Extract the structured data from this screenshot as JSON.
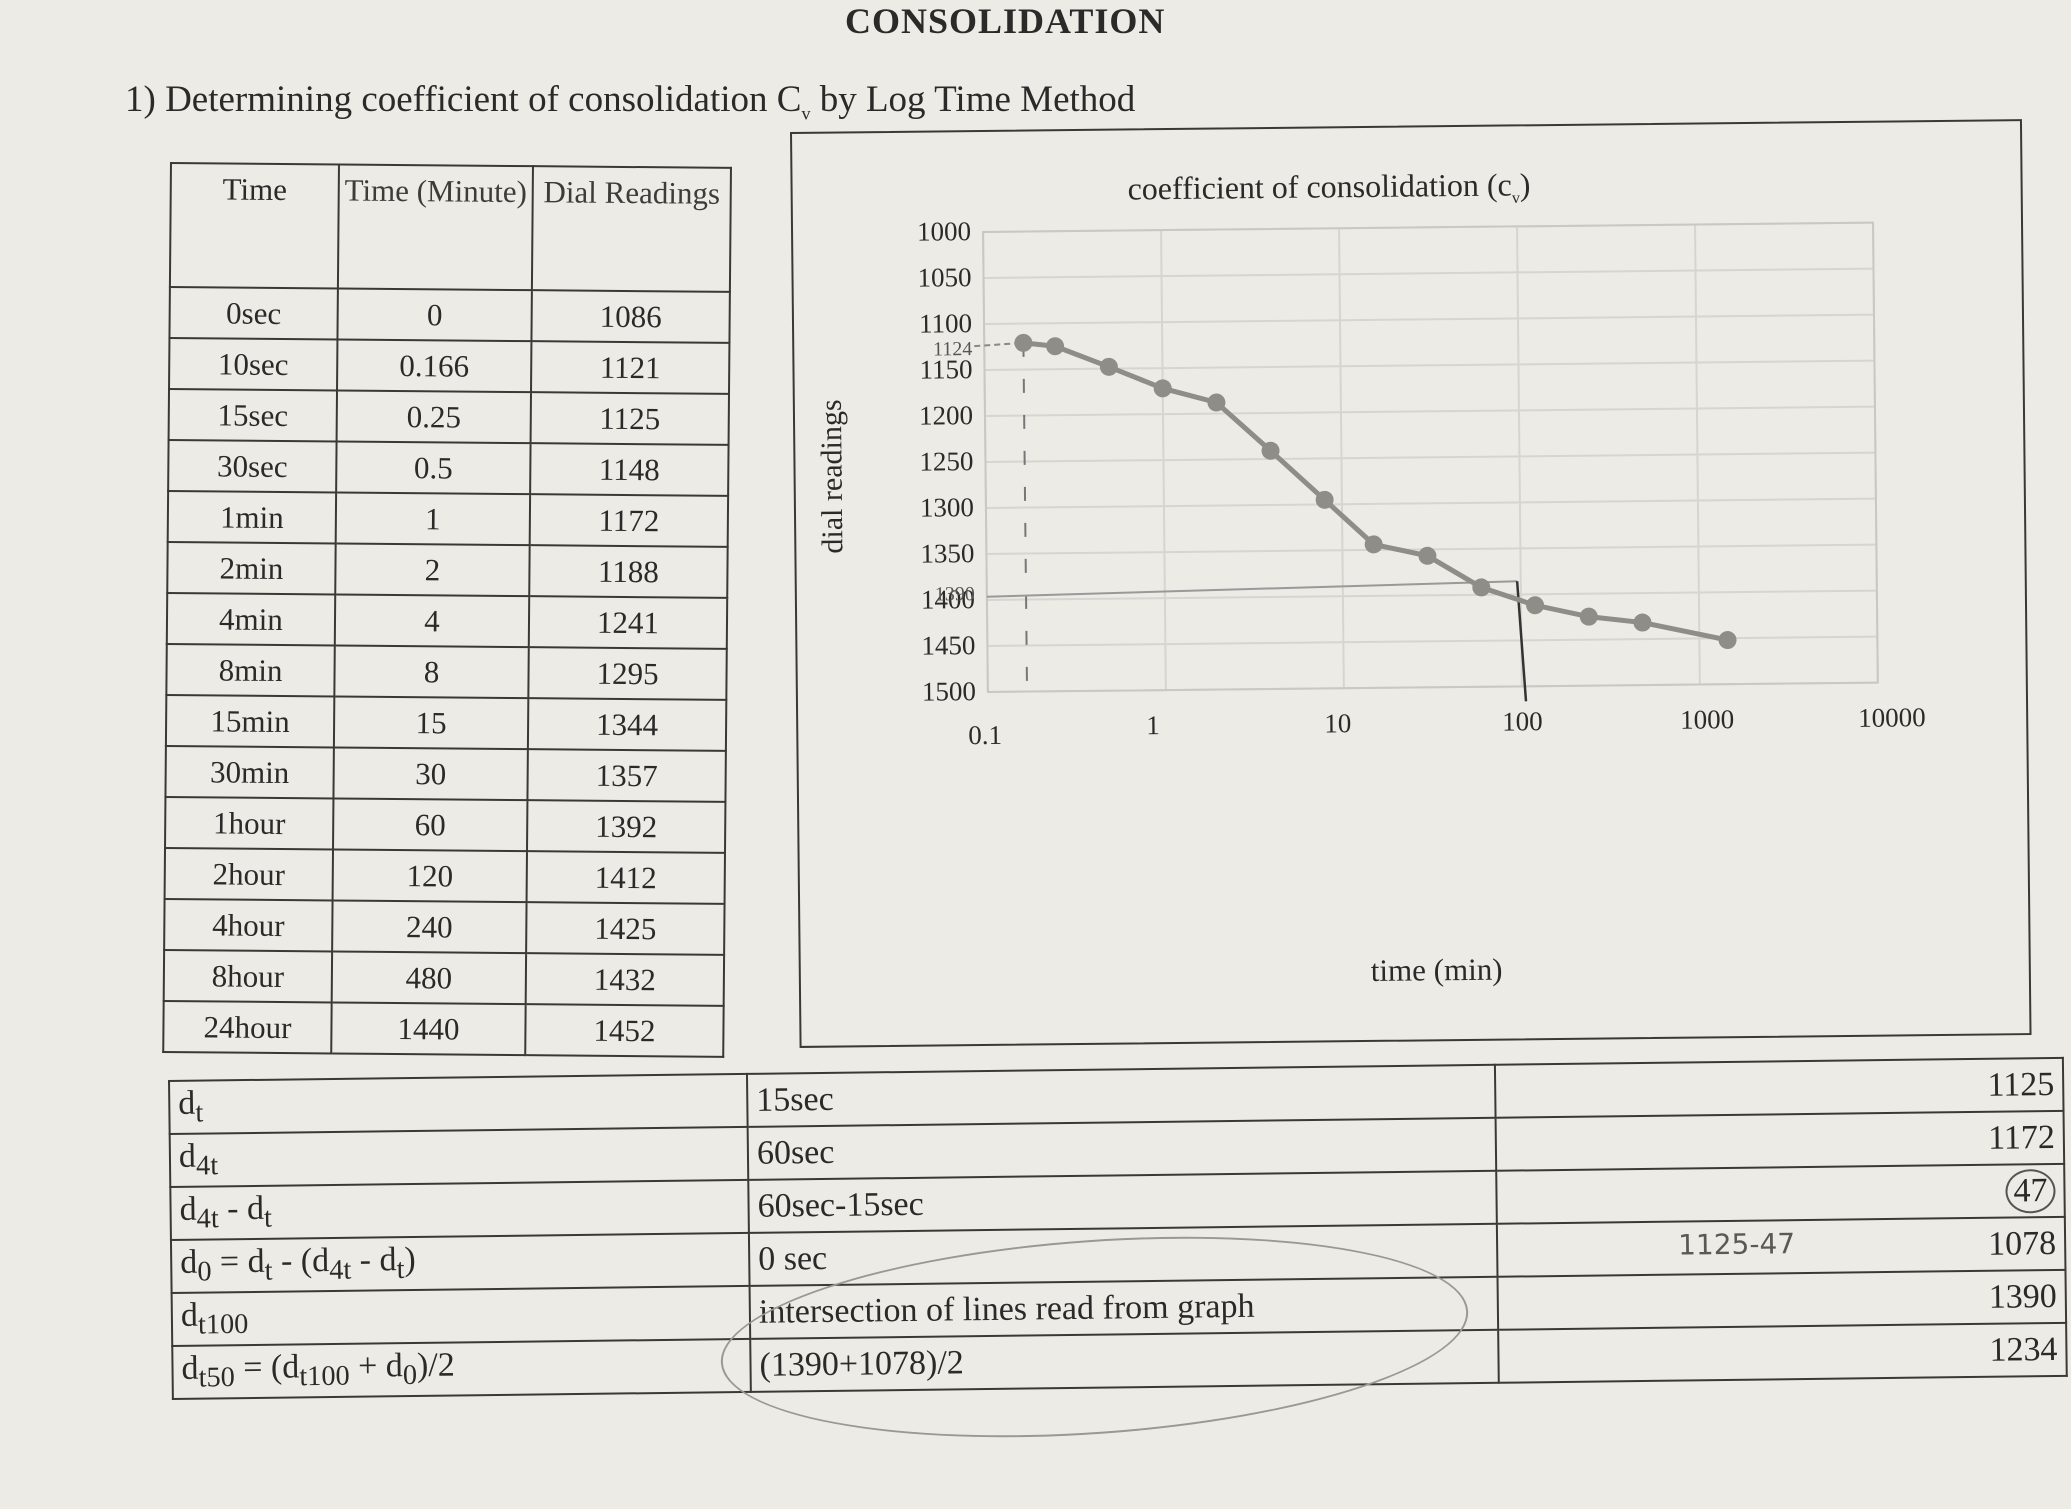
{
  "header": {
    "title": "CONSOLIDATION",
    "section_heading": "1) Determining coefficient of  consolidation C",
    "section_heading_sub": "v",
    "section_heading_tail": " by Log Time Method"
  },
  "readings_table": {
    "headers": [
      "Time",
      "Time (Minute)",
      "Dial Readings"
    ],
    "rows": [
      {
        "time": "0sec",
        "minutes": "0",
        "dial": "1086"
      },
      {
        "time": "10sec",
        "minutes": "0.166",
        "dial": "1121"
      },
      {
        "time": "15sec",
        "minutes": "0.25",
        "dial": "1125"
      },
      {
        "time": "30sec",
        "minutes": "0.5",
        "dial": "1148"
      },
      {
        "time": "1min",
        "minutes": "1",
        "dial": "1172"
      },
      {
        "time": "2min",
        "minutes": "2",
        "dial": "1188"
      },
      {
        "time": "4min",
        "minutes": "4",
        "dial": "1241"
      },
      {
        "time": "8min",
        "minutes": "8",
        "dial": "1295"
      },
      {
        "time": "15min",
        "minutes": "15",
        "dial": "1344"
      },
      {
        "time": "30min",
        "minutes": "30",
        "dial": "1357"
      },
      {
        "time": "1hour",
        "minutes": "60",
        "dial": "1392"
      },
      {
        "time": "2hour",
        "minutes": "120",
        "dial": "1412"
      },
      {
        "time": "4hour",
        "minutes": "240",
        "dial": "1425"
      },
      {
        "time": "8hour",
        "minutes": "480",
        "dial": "1432"
      },
      {
        "time": "24hour",
        "minutes": "1440",
        "dial": "1452"
      }
    ]
  },
  "chart_data": {
    "type": "line",
    "title": "coefficient of consolidation (c",
    "title_sub": "v",
    "title_tail": ")",
    "xlabel": "time (min)",
    "ylabel": "dial readings",
    "x_scale": "log",
    "xlim": [
      0.1,
      10000
    ],
    "ylim": [
      1000,
      1500
    ],
    "y_inverted": true,
    "x_ticks": [
      "0.1",
      "1",
      "10",
      "100",
      "1000",
      "10000"
    ],
    "y_ticks": [
      "1000",
      "1050",
      "1100",
      "1150",
      "1200",
      "1250",
      "1300",
      "1350",
      "1400",
      "1450",
      "1500"
    ],
    "grid": true,
    "legend": null,
    "series": [
      {
        "name": "dial readings",
        "x": [
          0.166,
          0.25,
          0.5,
          1,
          2,
          4,
          8,
          15,
          30,
          60,
          120,
          240,
          480,
          1440
        ],
        "values": [
          1121,
          1125,
          1148,
          1172,
          1188,
          1241,
          1295,
          1344,
          1357,
          1392,
          1412,
          1425,
          1432,
          1452
        ]
      }
    ],
    "annotations": {
      "handwritten_y_labels": [
        "1124",
        "1390"
      ],
      "d100_intersection": {
        "x": 100,
        "y": 1390
      },
      "dashed_vertical_at_x": 0.166
    }
  },
  "calc_table": {
    "rows": [
      {
        "label": "d_t",
        "desc": "15sec",
        "note": "",
        "value": "1125"
      },
      {
        "label": "d_4t",
        "desc": "60sec",
        "note": "",
        "value": "1172"
      },
      {
        "label": "d_4t - d_t",
        "desc": "60sec-15sec",
        "note": "",
        "value": "47"
      },
      {
        "label": "d_0 = d_t - (d_4t - d_t)",
        "desc": "0 sec",
        "note": "1125-47",
        "value": "1078"
      },
      {
        "label": "d_t100",
        "desc": "intersection of lines read from graph",
        "note": "",
        "value": "1390"
      },
      {
        "label": "d_t50 = (d_t100 + d_0)/2",
        "desc": "(1390+1078)/2",
        "note": "",
        "value": "1234"
      }
    ]
  },
  "colors": {
    "paper": "#ecebe6",
    "ink": "#2b2a28",
    "series": "#8e8d88",
    "grid": "#d6d5cf"
  }
}
